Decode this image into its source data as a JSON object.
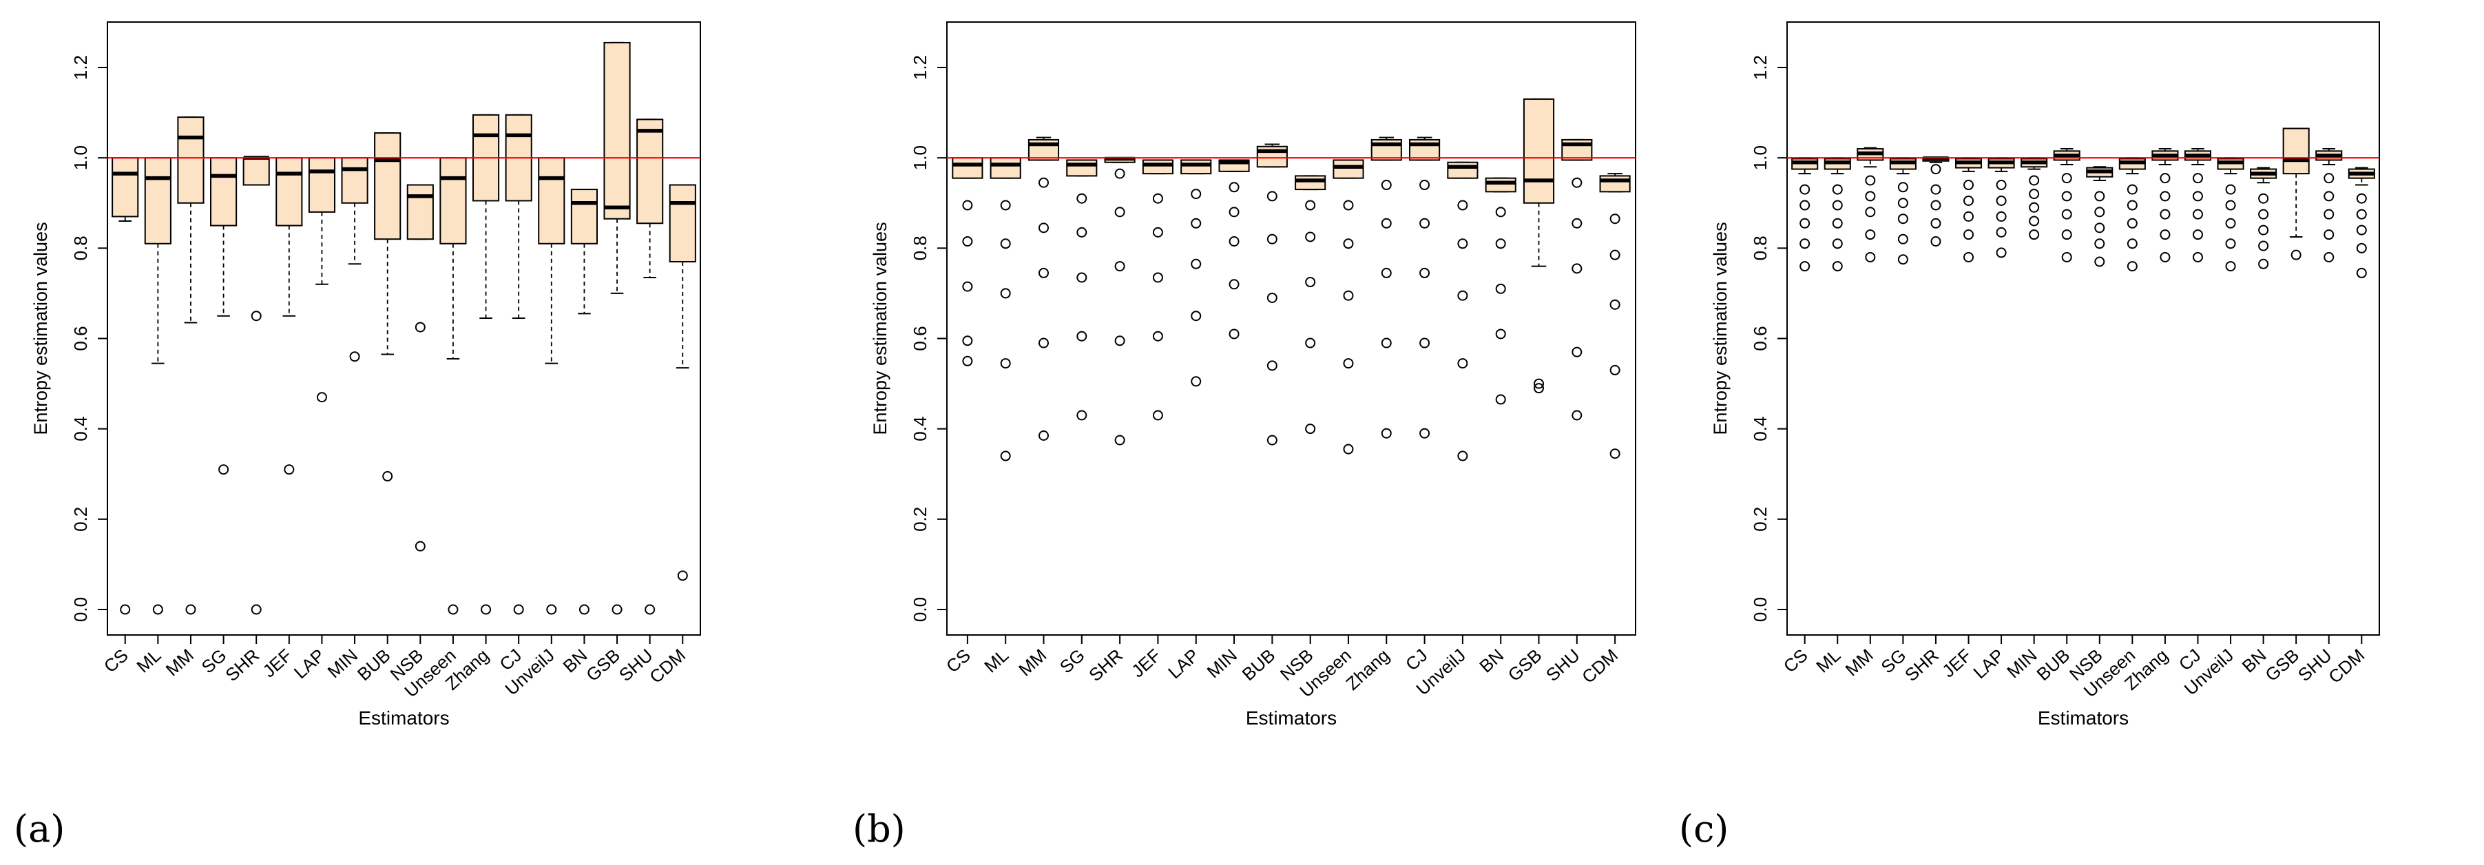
{
  "colors": {
    "box_fill": "#fde3c6",
    "reference_line": "#ff0000",
    "axis": "#000000"
  },
  "chart_data": [
    {
      "type": "boxplot",
      "panel_label": "(a)",
      "xlabel": "Estimators",
      "ylabel": "Entropy estimation values",
      "ylim": [
        -0.05,
        1.3
      ],
      "yticks": [
        "0.0",
        "0.2",
        "0.4",
        "0.6",
        "0.8",
        "1.0",
        "1.2"
      ],
      "reference_line": 1.0,
      "categories": [
        "CS",
        "ML",
        "MM",
        "SG",
        "SHR",
        "JEF",
        "LAP",
        "MIN",
        "BUB",
        "NSB",
        "Unseen",
        "Zhang",
        "CJ",
        "UnveilJ",
        "BN",
        "GSB",
        "SHU",
        "CDM"
      ],
      "boxes": [
        {
          "whisker_low": 0.86,
          "q1": 0.87,
          "median": 0.965,
          "q3": 1.0,
          "whisker_high": 1.0,
          "outliers": [
            0.0
          ]
        },
        {
          "whisker_low": 0.545,
          "q1": 0.81,
          "median": 0.955,
          "q3": 1.0,
          "whisker_high": 1.0,
          "outliers": [
            0.0
          ]
        },
        {
          "whisker_low": 0.635,
          "q1": 0.9,
          "median": 1.045,
          "q3": 1.09,
          "whisker_high": 1.09,
          "outliers": [
            0.0
          ]
        },
        {
          "whisker_low": 0.65,
          "q1": 0.85,
          "median": 0.96,
          "q3": 1.0,
          "whisker_high": 1.0,
          "outliers": [
            0.31
          ]
        },
        {
          "whisker_low": 0.94,
          "q1": 0.94,
          "median": 1.0,
          "q3": 1.0,
          "whisker_high": 1.0,
          "outliers": [
            0.65,
            0.0
          ]
        },
        {
          "whisker_low": 0.65,
          "q1": 0.85,
          "median": 0.965,
          "q3": 1.0,
          "whisker_high": 1.0,
          "outliers": [
            0.31
          ]
        },
        {
          "whisker_low": 0.72,
          "q1": 0.88,
          "median": 0.97,
          "q3": 1.0,
          "whisker_high": 1.0,
          "outliers": [
            0.47
          ]
        },
        {
          "whisker_low": 0.765,
          "q1": 0.9,
          "median": 0.975,
          "q3": 1.0,
          "whisker_high": 1.0,
          "outliers": [
            0.56
          ]
        },
        {
          "whisker_low": 0.565,
          "q1": 0.82,
          "median": 0.995,
          "q3": 1.055,
          "whisker_high": 1.055,
          "outliers": [
            0.295
          ]
        },
        {
          "whisker_low": 0.82,
          "q1": 0.82,
          "median": 0.915,
          "q3": 0.94,
          "whisker_high": 0.94,
          "outliers": [
            0.625,
            0.14
          ]
        },
        {
          "whisker_low": 0.555,
          "q1": 0.81,
          "median": 0.955,
          "q3": 1.0,
          "whisker_high": 1.0,
          "outliers": [
            0.0
          ]
        },
        {
          "whisker_low": 0.645,
          "q1": 0.905,
          "median": 1.05,
          "q3": 1.095,
          "whisker_high": 1.095,
          "outliers": [
            0.0
          ]
        },
        {
          "whisker_low": 0.645,
          "q1": 0.905,
          "median": 1.05,
          "q3": 1.095,
          "whisker_high": 1.095,
          "outliers": [
            0.0
          ]
        },
        {
          "whisker_low": 0.545,
          "q1": 0.81,
          "median": 0.955,
          "q3": 1.0,
          "whisker_high": 1.0,
          "outliers": [
            0.0
          ]
        },
        {
          "whisker_low": 0.655,
          "q1": 0.81,
          "median": 0.9,
          "q3": 0.93,
          "whisker_high": 0.93,
          "outliers": [
            0.0
          ]
        },
        {
          "whisker_low": 0.7,
          "q1": 0.865,
          "median": 0.89,
          "q3": 1.255,
          "whisker_high": 1.255,
          "outliers": [
            0.0
          ]
        },
        {
          "whisker_low": 0.735,
          "q1": 0.855,
          "median": 1.06,
          "q3": 1.085,
          "whisker_high": 1.085,
          "outliers": [
            0.0
          ]
        },
        {
          "whisker_low": 0.535,
          "q1": 0.77,
          "median": 0.9,
          "q3": 0.94,
          "whisker_high": 0.94,
          "outliers": [
            0.075
          ]
        }
      ]
    },
    {
      "type": "boxplot",
      "panel_label": "(b)",
      "xlabel": "Estimators",
      "ylabel": "Entropy estimation values",
      "ylim": [
        -0.05,
        1.3
      ],
      "yticks": [
        "0.0",
        "0.2",
        "0.4",
        "0.6",
        "0.8",
        "1.0",
        "1.2"
      ],
      "reference_line": 1.0,
      "categories": [
        "CS",
        "ML",
        "MM",
        "SG",
        "SHR",
        "JEF",
        "LAP",
        "MIN",
        "BUB",
        "NSB",
        "Unseen",
        "Zhang",
        "CJ",
        "UnveilJ",
        "BN",
        "GSB",
        "SHU",
        "CDM"
      ],
      "boxes": [
        {
          "whisker_low": 0.955,
          "q1": 0.955,
          "median": 0.985,
          "q3": 1.0,
          "whisker_high": 1.0,
          "outliers": [
            0.895,
            0.815,
            0.715,
            0.595,
            0.55
          ]
        },
        {
          "whisker_low": 0.955,
          "q1": 0.955,
          "median": 0.985,
          "q3": 1.0,
          "whisker_high": 1.0,
          "outliers": [
            0.895,
            0.81,
            0.7,
            0.545,
            0.34
          ]
        },
        {
          "whisker_low": 0.995,
          "q1": 0.995,
          "median": 1.03,
          "q3": 1.04,
          "whisker_high": 1.045,
          "outliers": [
            0.945,
            0.845,
            0.745,
            0.59,
            0.385
          ]
        },
        {
          "whisker_low": 0.96,
          "q1": 0.96,
          "median": 0.985,
          "q3": 0.995,
          "whisker_high": 0.995,
          "outliers": [
            0.91,
            0.835,
            0.735,
            0.605,
            0.43
          ]
        },
        {
          "whisker_low": 0.99,
          "q1": 0.99,
          "median": 0.998,
          "q3": 1.0,
          "whisker_high": 1.0,
          "outliers": [
            0.965,
            0.88,
            0.76,
            0.595,
            0.375
          ]
        },
        {
          "whisker_low": 0.965,
          "q1": 0.965,
          "median": 0.985,
          "q3": 0.995,
          "whisker_high": 0.995,
          "outliers": [
            0.91,
            0.835,
            0.735,
            0.605,
            0.43
          ]
        },
        {
          "whisker_low": 0.965,
          "q1": 0.965,
          "median": 0.985,
          "q3": 0.995,
          "whisker_high": 0.995,
          "outliers": [
            0.92,
            0.855,
            0.765,
            0.65,
            0.505
          ]
        },
        {
          "whisker_low": 0.97,
          "q1": 0.97,
          "median": 0.99,
          "q3": 0.995,
          "whisker_high": 0.995,
          "outliers": [
            0.935,
            0.88,
            0.815,
            0.72,
            0.61
          ]
        },
        {
          "whisker_low": 0.98,
          "q1": 0.98,
          "median": 1.015,
          "q3": 1.025,
          "whisker_high": 1.03,
          "outliers": [
            0.915,
            0.82,
            0.69,
            0.54,
            0.375
          ]
        },
        {
          "whisker_low": 0.93,
          "q1": 0.93,
          "median": 0.95,
          "q3": 0.96,
          "whisker_high": 0.96,
          "outliers": [
            0.895,
            0.825,
            0.725,
            0.59,
            0.4
          ]
        },
        {
          "whisker_low": 0.955,
          "q1": 0.955,
          "median": 0.98,
          "q3": 0.995,
          "whisker_high": 0.995,
          "outliers": [
            0.895,
            0.81,
            0.695,
            0.545,
            0.355
          ]
        },
        {
          "whisker_low": 0.995,
          "q1": 0.995,
          "median": 1.03,
          "q3": 1.04,
          "whisker_high": 1.045,
          "outliers": [
            0.94,
            0.855,
            0.745,
            0.59,
            0.39
          ]
        },
        {
          "whisker_low": 0.995,
          "q1": 0.995,
          "median": 1.03,
          "q3": 1.04,
          "whisker_high": 1.045,
          "outliers": [
            0.94,
            0.855,
            0.745,
            0.59,
            0.39
          ]
        },
        {
          "whisker_low": 0.955,
          "q1": 0.955,
          "median": 0.98,
          "q3": 0.99,
          "whisker_high": 0.99,
          "outliers": [
            0.895,
            0.81,
            0.695,
            0.545,
            0.34
          ]
        },
        {
          "whisker_low": 0.925,
          "q1": 0.925,
          "median": 0.945,
          "q3": 0.955,
          "whisker_high": 0.955,
          "outliers": [
            0.88,
            0.81,
            0.71,
            0.61,
            0.465
          ]
        },
        {
          "whisker_low": 0.76,
          "q1": 0.9,
          "median": 0.95,
          "q3": 1.13,
          "whisker_high": 1.13,
          "outliers": [
            0.5,
            0.49
          ]
        },
        {
          "whisker_low": 0.995,
          "q1": 0.995,
          "median": 1.03,
          "q3": 1.04,
          "whisker_high": 1.04,
          "outliers": [
            0.945,
            0.855,
            0.755,
            0.57,
            0.43
          ]
        },
        {
          "whisker_low": 0.925,
          "q1": 0.925,
          "median": 0.95,
          "q3": 0.96,
          "whisker_high": 0.965,
          "outliers": [
            0.865,
            0.785,
            0.675,
            0.53,
            0.345
          ]
        }
      ]
    },
    {
      "type": "boxplot",
      "panel_label": "(c)",
      "xlabel": "Estimators",
      "ylabel": "Entropy estimation values",
      "ylim": [
        -0.05,
        1.3
      ],
      "yticks": [
        "0.0",
        "0.2",
        "0.4",
        "0.6",
        "0.8",
        "1.0",
        "1.2"
      ],
      "reference_line": 1.0,
      "categories": [
        "CS",
        "ML",
        "MM",
        "SG",
        "SHR",
        "JEF",
        "LAP",
        "MIN",
        "BUB",
        "NSB",
        "Unseen",
        "Zhang",
        "CJ",
        "UnveilJ",
        "BN",
        "GSB",
        "SHU",
        "CDM"
      ],
      "boxes": [
        {
          "whisker_low": 0.965,
          "q1": 0.975,
          "median": 0.99,
          "q3": 0.998,
          "whisker_high": 1.0,
          "outliers": [
            0.93,
            0.895,
            0.855,
            0.81,
            0.76
          ]
        },
        {
          "whisker_low": 0.965,
          "q1": 0.975,
          "median": 0.99,
          "q3": 0.998,
          "whisker_high": 1.0,
          "outliers": [
            0.93,
            0.895,
            0.855,
            0.81,
            0.76
          ]
        },
        {
          "whisker_low": 0.98,
          "q1": 0.995,
          "median": 1.01,
          "q3": 1.02,
          "whisker_high": 1.022,
          "outliers": [
            0.95,
            0.915,
            0.88,
            0.83,
            0.78
          ]
        },
        {
          "whisker_low": 0.965,
          "q1": 0.975,
          "median": 0.99,
          "q3": 0.998,
          "whisker_high": 1.0,
          "outliers": [
            0.935,
            0.9,
            0.865,
            0.82,
            0.775
          ]
        },
        {
          "whisker_low": 0.99,
          "q1": 0.993,
          "median": 0.999,
          "q3": 1.0,
          "whisker_high": 1.0,
          "outliers": [
            0.975,
            0.93,
            0.895,
            0.855,
            0.815
          ]
        },
        {
          "whisker_low": 0.97,
          "q1": 0.978,
          "median": 0.99,
          "q3": 0.998,
          "whisker_high": 1.0,
          "outliers": [
            0.94,
            0.905,
            0.87,
            0.83,
            0.78
          ]
        },
        {
          "whisker_low": 0.97,
          "q1": 0.978,
          "median": 0.99,
          "q3": 0.998,
          "whisker_high": 1.0,
          "outliers": [
            0.94,
            0.905,
            0.87,
            0.835,
            0.79
          ]
        },
        {
          "whisker_low": 0.975,
          "q1": 0.98,
          "median": 0.99,
          "q3": 0.998,
          "whisker_high": 1.0,
          "outliers": [
            0.95,
            0.92,
            0.89,
            0.86,
            0.83
          ]
        },
        {
          "whisker_low": 0.985,
          "q1": 0.995,
          "median": 1.005,
          "q3": 1.015,
          "whisker_high": 1.02,
          "outliers": [
            0.955,
            0.915,
            0.875,
            0.83,
            0.78
          ]
        },
        {
          "whisker_low": 0.95,
          "q1": 0.958,
          "median": 0.97,
          "q3": 0.978,
          "whisker_high": 0.98,
          "outliers": [
            0.915,
            0.88,
            0.845,
            0.81,
            0.77
          ]
        },
        {
          "whisker_low": 0.965,
          "q1": 0.975,
          "median": 0.99,
          "q3": 0.998,
          "whisker_high": 1.0,
          "outliers": [
            0.93,
            0.895,
            0.855,
            0.81,
            0.76
          ]
        },
        {
          "whisker_low": 0.985,
          "q1": 0.995,
          "median": 1.005,
          "q3": 1.015,
          "whisker_high": 1.02,
          "outliers": [
            0.955,
            0.915,
            0.875,
            0.83,
            0.78
          ]
        },
        {
          "whisker_low": 0.985,
          "q1": 0.995,
          "median": 1.005,
          "q3": 1.015,
          "whisker_high": 1.02,
          "outliers": [
            0.955,
            0.915,
            0.875,
            0.83,
            0.78
          ]
        },
        {
          "whisker_low": 0.965,
          "q1": 0.975,
          "median": 0.99,
          "q3": 0.998,
          "whisker_high": 1.0,
          "outliers": [
            0.93,
            0.895,
            0.855,
            0.81,
            0.76
          ]
        },
        {
          "whisker_low": 0.945,
          "q1": 0.955,
          "median": 0.965,
          "q3": 0.975,
          "whisker_high": 0.978,
          "outliers": [
            0.91,
            0.875,
            0.84,
            0.805,
            0.765
          ]
        },
        {
          "whisker_low": 0.825,
          "q1": 0.965,
          "median": 0.995,
          "q3": 1.065,
          "whisker_high": 1.065,
          "outliers": [
            0.785
          ]
        },
        {
          "whisker_low": 0.985,
          "q1": 0.995,
          "median": 1.005,
          "q3": 1.015,
          "whisker_high": 1.02,
          "outliers": [
            0.955,
            0.915,
            0.875,
            0.83,
            0.78
          ]
        },
        {
          "whisker_low": 0.94,
          "q1": 0.955,
          "median": 0.965,
          "q3": 0.975,
          "whisker_high": 0.978,
          "outliers": [
            0.91,
            0.875,
            0.84,
            0.8,
            0.745
          ]
        }
      ]
    }
  ]
}
